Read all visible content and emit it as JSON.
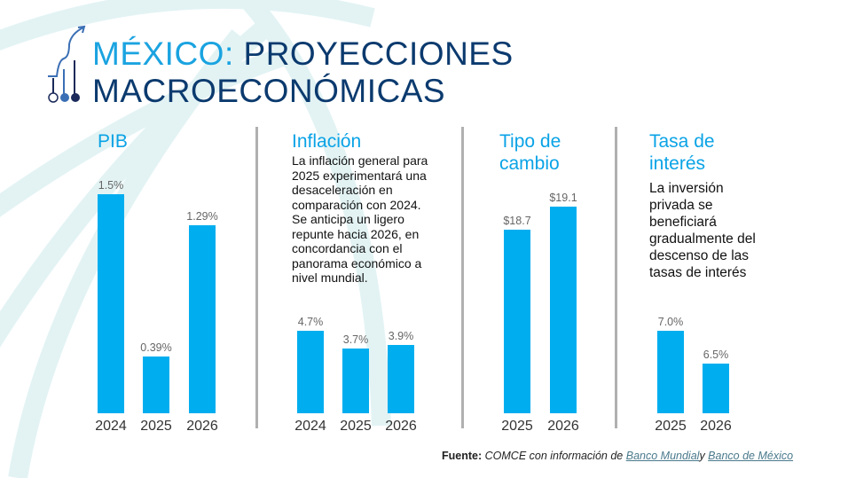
{
  "title": {
    "accent": "MÉXICO:",
    "rest_line1": "PROYECCIONES",
    "line2": "MACROECONÓMICAS"
  },
  "colors": {
    "bar": "#00aeef",
    "heading": "#0aa3e6",
    "title": "#0b3a6e"
  },
  "chart_data": [
    {
      "type": "bar",
      "title": "PIB",
      "categories": [
        "2024",
        "2025",
        "2026"
      ],
      "values": [
        1.5,
        0.39,
        1.29
      ],
      "labels": [
        "1.5%",
        "0.39%",
        "1.29%"
      ],
      "ylim": [
        0,
        1.5
      ]
    },
    {
      "type": "bar",
      "title": "Inflación",
      "description": "La inflación general para 2025 experimentará una desaceleración en comparación con 2024. Se anticipa un ligero repunte hacia 2026, en concordancia con el panorama económico a nivel mundial.",
      "categories": [
        "2024",
        "2025",
        "2026"
      ],
      "values": [
        4.7,
        3.7,
        3.9
      ],
      "labels": [
        "4.7%",
        "3.7%",
        "3.9%"
      ],
      "ylim": [
        0,
        4.7
      ]
    },
    {
      "type": "bar",
      "title": "Tipo de cambio",
      "categories": [
        "2025",
        "2026"
      ],
      "values": [
        18.7,
        19.1
      ],
      "labels": [
        "$18.7",
        "$19.1"
      ],
      "ylim": [
        15.5,
        19.1
      ]
    },
    {
      "type": "bar",
      "title": "Tasa de interés",
      "description": "La inversión privada se beneficiará gradualmente del descenso de las tasas de interés",
      "categories": [
        "2025",
        "2026"
      ],
      "values": [
        7.0,
        6.5
      ],
      "labels": [
        "7.0%",
        "6.5%"
      ],
      "ylim": [
        5.75,
        7.0
      ]
    }
  ],
  "source": {
    "label": "Fuente:",
    "text": "COMCE con información de",
    "link1": "Banco Mundial",
    "joiner": "y",
    "link2": "Banco de México"
  }
}
